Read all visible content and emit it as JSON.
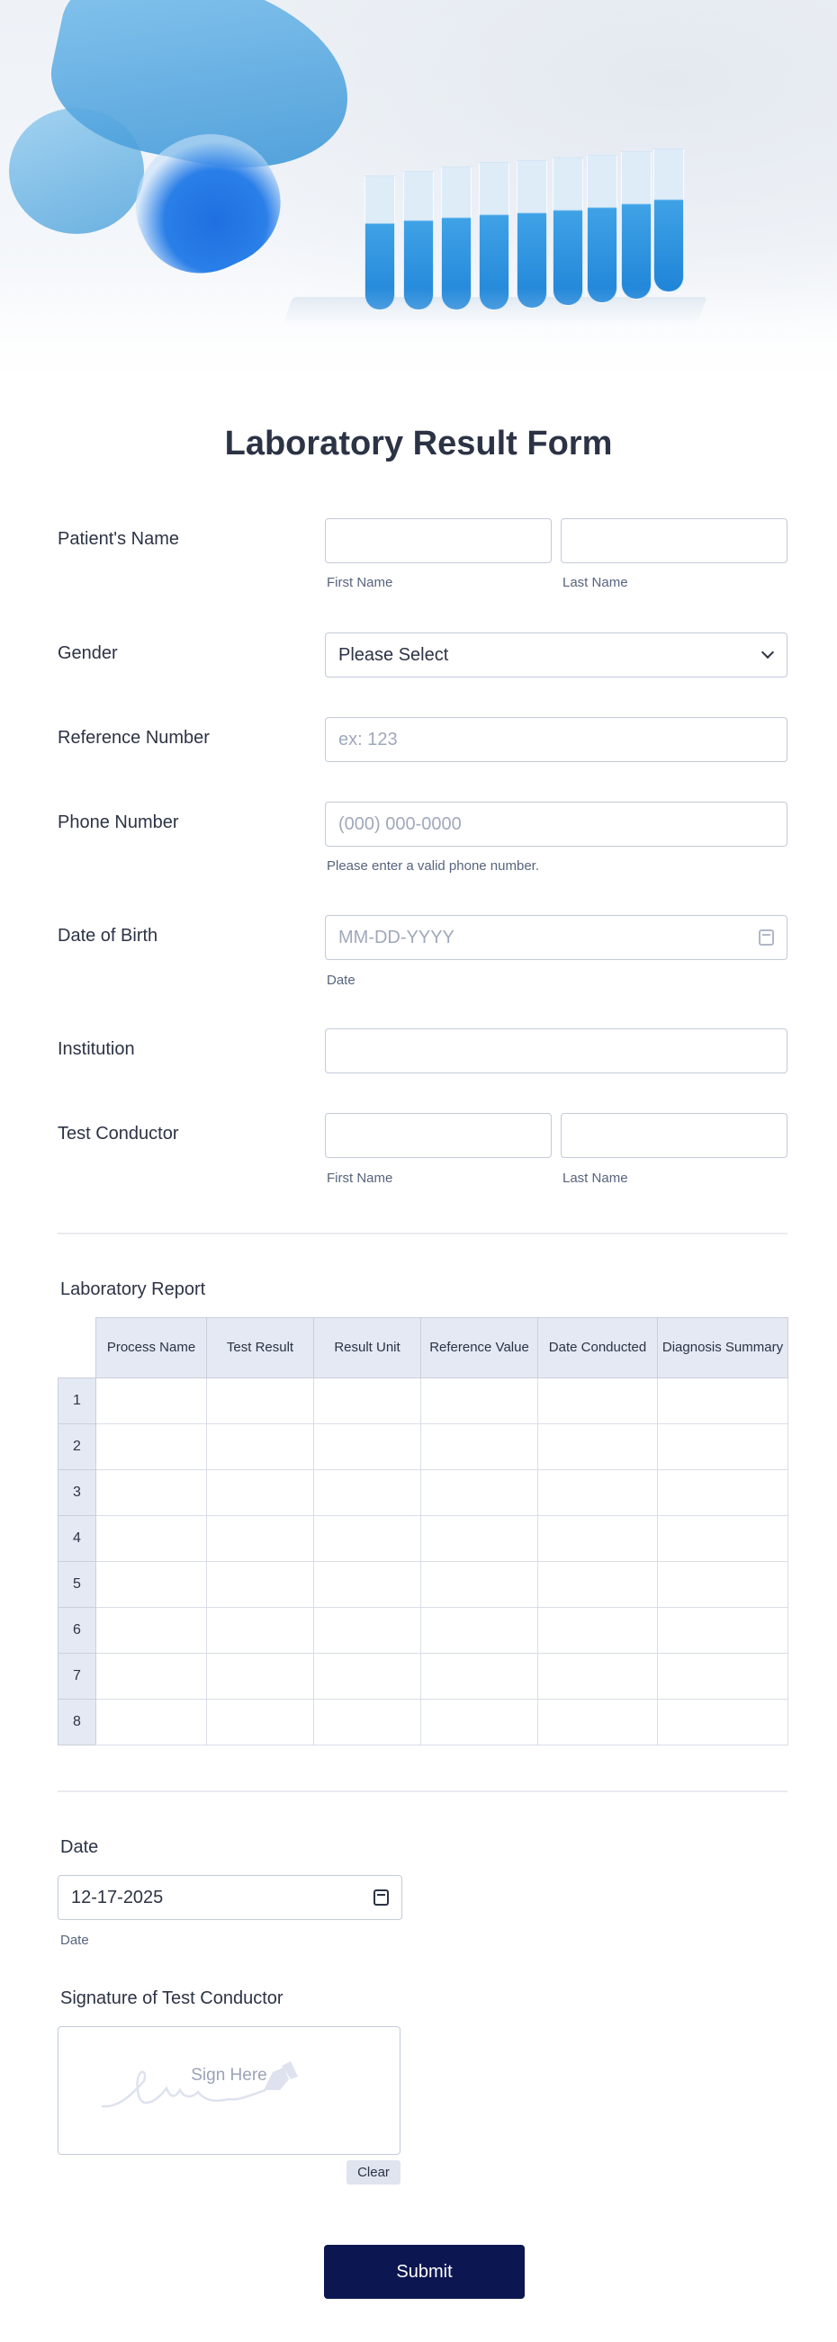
{
  "form": {
    "title": "Laboratory Result Form"
  },
  "fields": {
    "patient_name": {
      "label": "Patient's Name",
      "first_sublabel": "First Name",
      "last_sublabel": "Last Name",
      "first_value": "",
      "last_value": ""
    },
    "gender": {
      "label": "Gender",
      "selected": "Please Select"
    },
    "reference_number": {
      "label": "Reference Number",
      "placeholder": "ex: 123"
    },
    "phone_number": {
      "label": "Phone Number",
      "placeholder": "(000) 000-0000",
      "help": "Please enter a valid phone number."
    },
    "date_of_birth": {
      "label": "Date of Birth",
      "placeholder": "MM-DD-YYYY",
      "sublabel": "Date"
    },
    "institution": {
      "label": "Institution",
      "value": ""
    },
    "test_conductor": {
      "label": "Test Conductor",
      "first_sublabel": "First Name",
      "last_sublabel": "Last Name"
    }
  },
  "report": {
    "label": "Laboratory Report",
    "columns": [
      "Process Name",
      "Test Result",
      "Result Unit",
      "Reference Value",
      "Date Conducted",
      "Diagnosis Summary"
    ],
    "rows": [
      "1",
      "2",
      "3",
      "4",
      "5",
      "6",
      "7",
      "8"
    ]
  },
  "date": {
    "label": "Date",
    "value": "12-17-2025",
    "sublabel": "Date"
  },
  "signature": {
    "label": "Signature of Test Conductor",
    "placeholder": "Sign Here",
    "clear_label": "Clear"
  },
  "submit_label": "Submit",
  "colors": {
    "primary": "#0c1651",
    "text": "#2c3345",
    "border": "#c3cad8",
    "table_header": "#e5e9f3"
  }
}
